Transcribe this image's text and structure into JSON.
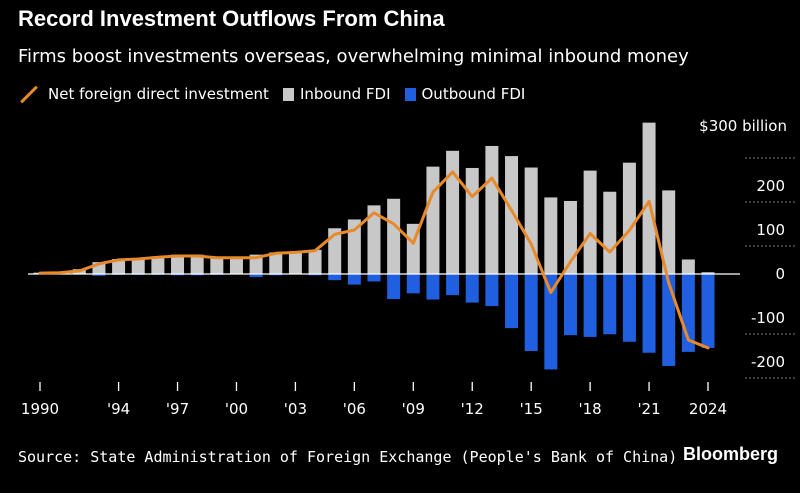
{
  "title": "Record Investment Outflows From China",
  "subtitle": "Firms boost investments overseas, overwhelming minimal inbound money",
  "legend": {
    "net": "Net foreign direct investment",
    "inbound": "Inbound FDI",
    "outbound": "Outbound FDI"
  },
  "source": "Source: State Administration of Foreign Exchange (People's Bank of China)",
  "brand": "Bloomberg",
  "colors": {
    "net": "#e8892a",
    "inbound": "#c8c8c8",
    "outbound": "#1f5fe0",
    "background": "#000000"
  },
  "chart_data": {
    "type": "bar",
    "years": [
      1990,
      1991,
      1992,
      1993,
      1994,
      1995,
      1996,
      1997,
      1998,
      1999,
      2000,
      2001,
      2002,
      2003,
      2004,
      2005,
      2006,
      2007,
      2008,
      2009,
      2010,
      2011,
      2012,
      2013,
      2014,
      2015,
      2016,
      2017,
      2018,
      2019,
      2020,
      2021,
      2022,
      2023,
      2024
    ],
    "series": [
      {
        "name": "Inbound FDI",
        "kind": "bar",
        "values": [
          3,
          4,
          11,
          27,
          34,
          36,
          40,
          44,
          44,
          39,
          38,
          44,
          49,
          50,
          55,
          104,
          124,
          156,
          171,
          114,
          244,
          280,
          241,
          291,
          268,
          242,
          174,
          166,
          235,
          187,
          253,
          344,
          190,
          33,
          4
        ]
      },
      {
        "name": "Outbound FDI",
        "kind": "bar",
        "values": [
          -1,
          -1,
          -1,
          -4,
          -2,
          -2,
          -2,
          -3,
          -3,
          -2,
          -1,
          -7,
          -3,
          -1,
          -3,
          -14,
          -24,
          -17,
          -57,
          -44,
          -58,
          -48,
          -65,
          -73,
          -123,
          -175,
          -217,
          -139,
          -143,
          -137,
          -154,
          -179,
          -209,
          -177,
          -168
        ]
      },
      {
        "name": "Net foreign direct investment",
        "kind": "line",
        "values": [
          2,
          3,
          7,
          23,
          32,
          34,
          38,
          41,
          41,
          37,
          37,
          37,
          47,
          49,
          53,
          90,
          100,
          139,
          114,
          70,
          186,
          232,
          176,
          218,
          145,
          68,
          -42,
          28,
          92,
          50,
          99,
          165,
          -20,
          -150,
          -168
        ]
      }
    ],
    "xticks": [
      "1990",
      "'94",
      "'97",
      "'00",
      "'03",
      "'06",
      "'09",
      "'12",
      "'15",
      "'18",
      "'21",
      "2024"
    ],
    "xtick_years": [
      1990,
      1994,
      1997,
      2000,
      2003,
      2006,
      2009,
      2012,
      2015,
      2018,
      2021,
      2024
    ],
    "yticks": [
      "$300 billion",
      "200",
      "100",
      "0",
      "-100",
      "-200"
    ],
    "ytick_values": [
      300,
      200,
      100,
      0,
      -100,
      -200
    ],
    "ylim": [
      -220,
      350
    ],
    "grid": true
  }
}
